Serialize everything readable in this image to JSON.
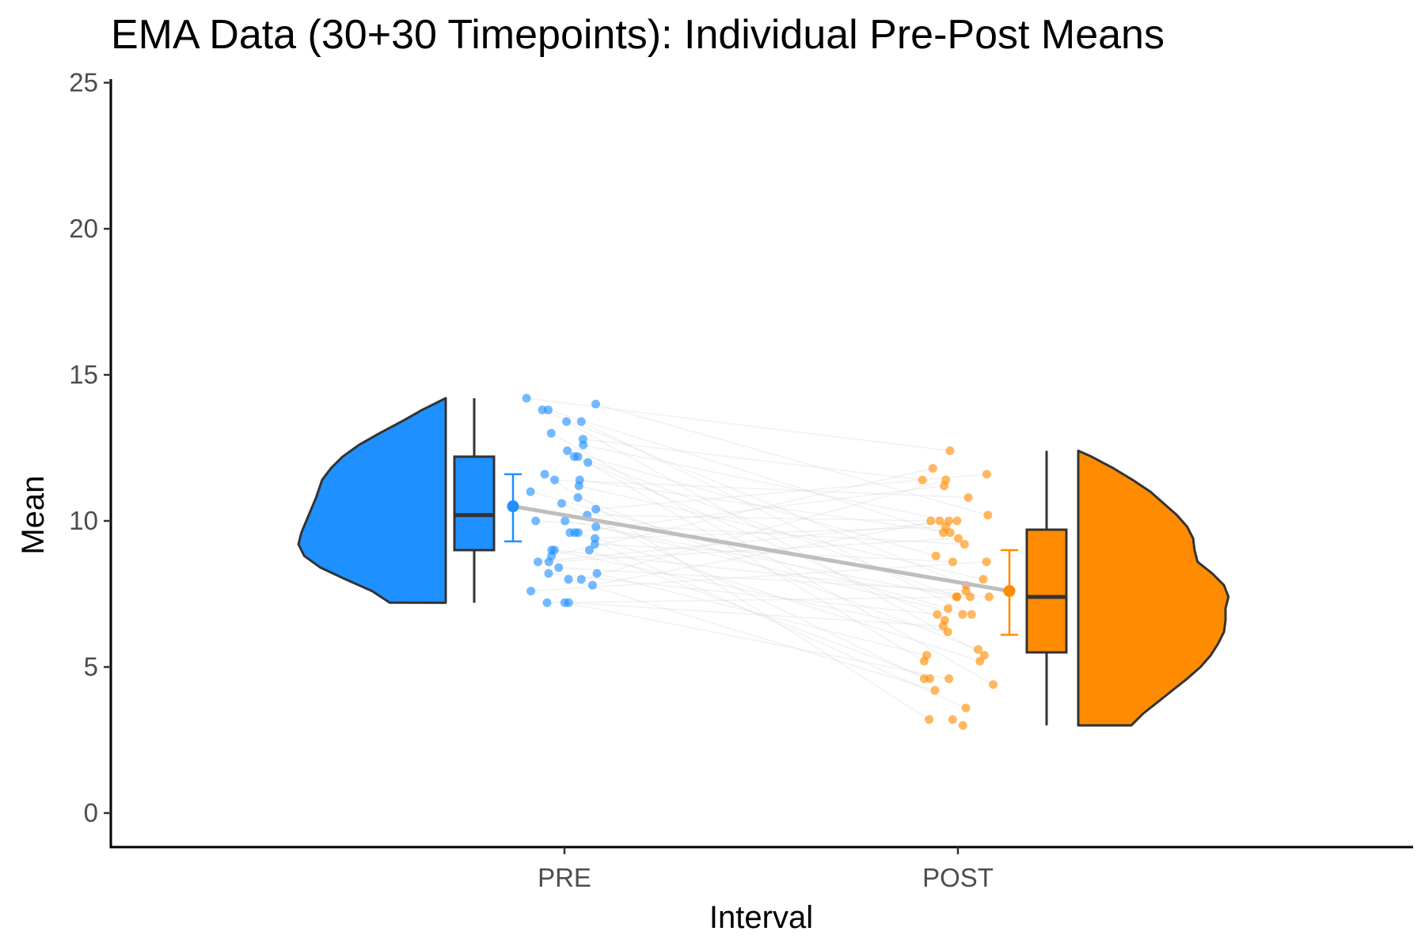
{
  "chart_data": {
    "type": "raincloud",
    "title": "EMA Data (30+30 Timepoints): Individual Pre-Post Means",
    "xlabel": "Interval",
    "ylabel": "Mean",
    "ylim": [
      -1.2,
      25.2
    ],
    "yticks": [
      0,
      5,
      10,
      15,
      20,
      25
    ],
    "categories": [
      "PRE",
      "POST"
    ],
    "grid": false,
    "legend": "none",
    "colors": {
      "PRE": "#1E90FF",
      "POST": "#FF8C00",
      "line": "#BEBEBE",
      "outline": "#333333"
    },
    "series": [
      {
        "name": "PRE",
        "points": [
          14.2,
          14.0,
          13.8,
          13.8,
          13.4,
          13.4,
          13.0,
          12.8,
          12.6,
          12.4,
          12.2,
          12.2,
          12.0,
          11.6,
          11.4,
          11.4,
          11.2,
          11.0,
          10.8,
          10.6,
          10.4,
          10.2,
          10.0,
          10.0,
          9.8,
          9.6,
          9.6,
          9.6,
          9.4,
          9.2,
          9.0,
          9.0,
          9.0,
          8.8,
          8.6,
          8.6,
          8.4,
          8.2,
          8.2,
          8.0,
          8.0,
          7.8,
          7.6,
          7.2,
          7.2,
          7.2
        ],
        "mean": 10.5,
        "ci": [
          9.3,
          11.6
        ],
        "box": {
          "min": 7.2,
          "q1": 9.0,
          "median": 10.2,
          "q3": 12.2,
          "max": 14.2
        },
        "density": [
          [
            7.2,
            0.38
          ],
          [
            7.6,
            0.5
          ],
          [
            8.0,
            0.68
          ],
          [
            8.4,
            0.85
          ],
          [
            8.8,
            0.96
          ],
          [
            9.2,
            1.0
          ],
          [
            9.6,
            0.98
          ],
          [
            10.2,
            0.93
          ],
          [
            10.8,
            0.88
          ],
          [
            11.4,
            0.84
          ],
          [
            11.8,
            0.78
          ],
          [
            12.2,
            0.7
          ],
          [
            12.6,
            0.59
          ],
          [
            13.0,
            0.45
          ],
          [
            13.4,
            0.3
          ],
          [
            13.8,
            0.16
          ],
          [
            14.2,
            0.0
          ]
        ]
      },
      {
        "name": "POST",
        "points": [
          12.4,
          11.8,
          11.6,
          11.4,
          11.4,
          11.2,
          10.8,
          10.2,
          10.0,
          10.0,
          10.0,
          10.0,
          9.8,
          9.6,
          9.6,
          9.4,
          9.2,
          8.8,
          8.6,
          8.6,
          8.0,
          7.8,
          7.6,
          7.4,
          7.4,
          7.4,
          7.4,
          7.0,
          6.8,
          6.8,
          6.8,
          6.6,
          6.4,
          6.2,
          5.6,
          5.4,
          5.4,
          5.2,
          5.2,
          4.6,
          4.6,
          4.6,
          4.4,
          4.2,
          3.6,
          3.2,
          3.2,
          3.0
        ],
        "mean": 7.6,
        "ci": [
          6.1,
          9.0
        ],
        "box": {
          "min": 3.0,
          "q1": 5.5,
          "median": 7.4,
          "q3": 9.7,
          "max": 12.4
        },
        "density": [
          [
            3.0,
            0.36
          ],
          [
            3.4,
            0.44
          ],
          [
            3.8,
            0.54
          ],
          [
            4.2,
            0.64
          ],
          [
            4.6,
            0.74
          ],
          [
            5.0,
            0.83
          ],
          [
            5.4,
            0.9
          ],
          [
            5.8,
            0.95
          ],
          [
            6.2,
            0.99
          ],
          [
            6.6,
            1.0
          ],
          [
            7.0,
            1.0
          ],
          [
            7.4,
            1.02
          ],
          [
            7.8,
            0.99
          ],
          [
            8.2,
            0.91
          ],
          [
            8.6,
            0.81
          ],
          [
            9.0,
            0.79
          ],
          [
            9.4,
            0.78
          ],
          [
            9.8,
            0.74
          ],
          [
            10.2,
            0.67
          ],
          [
            10.6,
            0.58
          ],
          [
            11.0,
            0.49
          ],
          [
            11.4,
            0.37
          ],
          [
            11.8,
            0.24
          ],
          [
            12.2,
            0.09
          ],
          [
            12.4,
            0.0
          ]
        ]
      }
    ]
  }
}
